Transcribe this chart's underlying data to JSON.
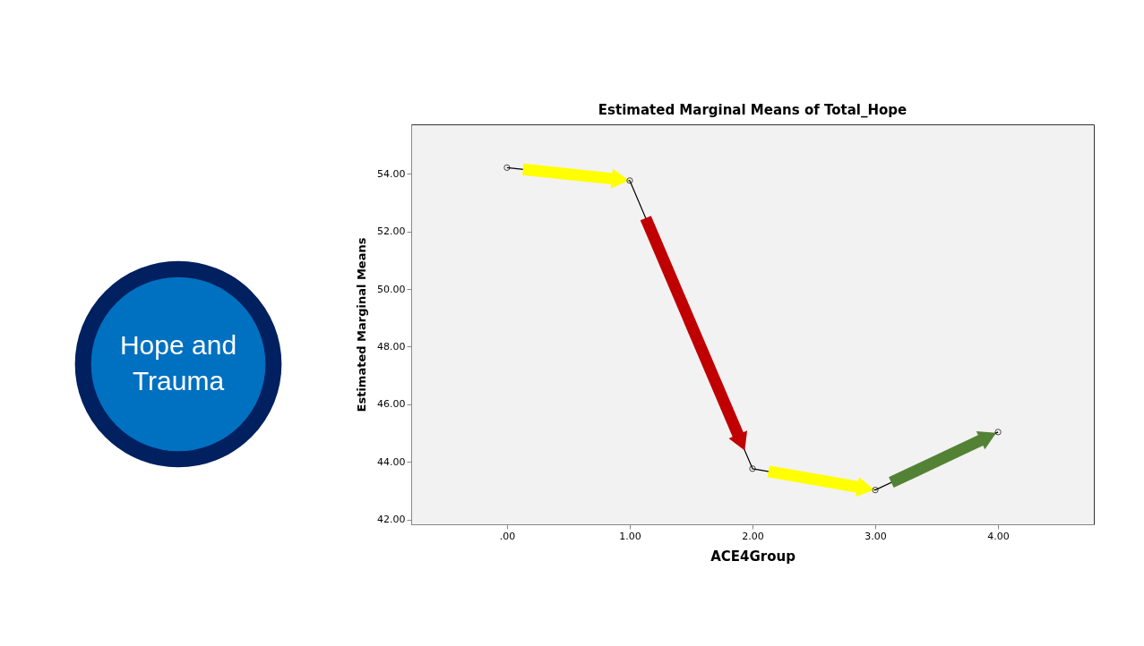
{
  "chart_data": {
    "type": "line",
    "title": "Estimated Marginal Means of Total_Hope",
    "xlabel": "ACE4Group",
    "ylabel": "Estimated Marginal Means",
    "x": [
      0,
      1,
      2,
      3,
      4
    ],
    "series": [
      {
        "color": "#000000",
        "values": [
          54.21,
          53.76,
          43.77,
          43.03,
          45.04
        ]
      }
    ],
    "xlim": [
      -0.78,
      4.78
    ],
    "ylim": [
      41.84,
      55.71
    ],
    "xticks": [
      {
        "value": 0,
        "label": ".00"
      },
      {
        "value": 1,
        "label": "1.00"
      },
      {
        "value": 2,
        "label": "2.00"
      },
      {
        "value": 3,
        "label": "3.00"
      },
      {
        "value": 4,
        "label": "4.00"
      }
    ],
    "yticks": [
      {
        "value": 42,
        "label": "42.00"
      },
      {
        "value": 44,
        "label": "44.00"
      },
      {
        "value": 46,
        "label": "46.00"
      },
      {
        "value": 48,
        "label": "48.00"
      },
      {
        "value": 50,
        "label": "50.00"
      },
      {
        "value": 52,
        "label": "52.00"
      },
      {
        "value": 54,
        "label": "54.00"
      }
    ],
    "marker": "circle",
    "grid": false,
    "annotations": [
      "Hope and Trauma"
    ]
  }
}
